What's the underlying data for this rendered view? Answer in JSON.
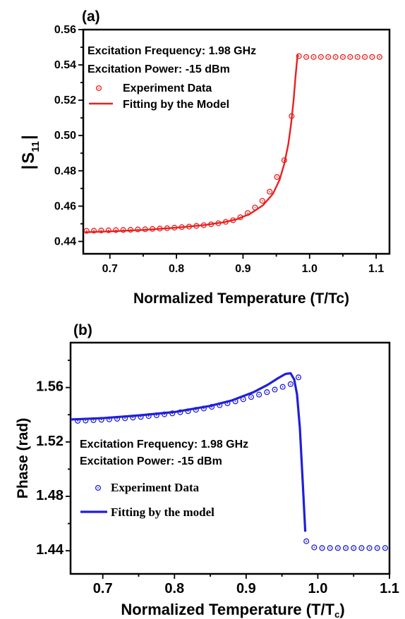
{
  "chart_data": [
    {
      "type": "line",
      "panel_label": "(a)",
      "xlabel": "Normalized Temperature (T/Tc)",
      "ylabel_main": "S",
      "ylabel_sub": "11",
      "xlim": [
        0.66,
        1.12
      ],
      "ylim": [
        0.433,
        0.56
      ],
      "xticks": [
        0.7,
        0.8,
        0.9,
        1.0,
        1.1
      ],
      "xtick_labels": [
        "0.7",
        "0.8",
        "0.9",
        "1.0",
        "1.1"
      ],
      "yticks": [
        0.44,
        0.46,
        0.48,
        0.5,
        0.52,
        0.54,
        0.56
      ],
      "ytick_labels": [
        "0.44",
        "0.46",
        "0.48",
        "0.50",
        "0.52",
        "0.54",
        "0.56"
      ],
      "annotations": [
        "Excitation Frequency: 1.98 GHz",
        "Excitation Power: -15 dBm"
      ],
      "legend": [
        "Experiment Data",
        "Fitting by the Model"
      ],
      "color": "#e8201f",
      "series": [
        {
          "name": "Experiment Data",
          "kind": "markers",
          "x": [
            0.665,
            0.676,
            0.687,
            0.698,
            0.709,
            0.72,
            0.731,
            0.742,
            0.753,
            0.764,
            0.775,
            0.786,
            0.797,
            0.808,
            0.819,
            0.83,
            0.841,
            0.852,
            0.863,
            0.874,
            0.885,
            0.896,
            0.907,
            0.918,
            0.929,
            0.94,
            0.951,
            0.962,
            0.973,
            0.984,
            0.995,
            1.006,
            1.017,
            1.028,
            1.039,
            1.05,
            1.061,
            1.072,
            1.083,
            1.094,
            1.105
          ],
          "y": [
            0.446,
            0.4461,
            0.4462,
            0.4463,
            0.4464,
            0.4465,
            0.4466,
            0.4468,
            0.4469,
            0.4471,
            0.4473,
            0.4475,
            0.4478,
            0.4481,
            0.4484,
            0.4488,
            0.4492,
            0.4497,
            0.4503,
            0.4511,
            0.452,
            0.4537,
            0.4561,
            0.4592,
            0.463,
            0.4682,
            0.4765,
            0.486,
            0.511,
            0.545,
            0.5445,
            0.5445,
            0.5445,
            0.5445,
            0.5445,
            0.5445,
            0.5445,
            0.5445,
            0.5445,
            0.5445,
            0.5445
          ]
        },
        {
          "name": "Fitting by the Model",
          "kind": "line",
          "x": [
            0.662,
            0.7,
            0.75,
            0.8,
            0.84,
            0.87,
            0.89,
            0.91,
            0.93,
            0.945,
            0.955,
            0.962,
            0.968,
            0.972,
            0.976,
            0.979,
            0.981,
            0.982
          ],
          "y": [
            0.4452,
            0.4457,
            0.4465,
            0.4478,
            0.4492,
            0.4508,
            0.4525,
            0.4555,
            0.4605,
            0.467,
            0.475,
            0.484,
            0.495,
            0.506,
            0.52,
            0.534,
            0.542,
            0.546
          ]
        }
      ]
    },
    {
      "type": "line",
      "panel_label": "(b)",
      "xlabel_main": "Normalized Temperature (T/T",
      "xlabel_sub": "c",
      "xlabel_end": ")",
      "ylabel": "Phase (rad)",
      "xlim": [
        0.655,
        1.1
      ],
      "ylim": [
        1.423,
        1.593
      ],
      "xticks": [
        0.7,
        0.8,
        0.9,
        1.0,
        1.1
      ],
      "xtick_labels": [
        "0.7",
        "0.8",
        "0.9",
        "1.0",
        "1.1"
      ],
      "yticks": [
        1.44,
        1.48,
        1.52,
        1.56
      ],
      "ytick_labels": [
        "1.44",
        "1.48",
        "1.52",
        "1.56"
      ],
      "annotations": [
        "Excitation Frequency: 1.98 GHz",
        "Excitation Power: -15 dBm"
      ],
      "legend": [
        "Experiment Data",
        "Fitting by the model"
      ],
      "color": "#1f1fd9",
      "series": [
        {
          "name": "Experiment Data",
          "kind": "markers",
          "x": [
            0.665,
            0.676,
            0.687,
            0.698,
            0.709,
            0.72,
            0.731,
            0.742,
            0.753,
            0.764,
            0.775,
            0.786,
            0.797,
            0.808,
            0.819,
            0.83,
            0.841,
            0.852,
            0.863,
            0.874,
            0.885,
            0.896,
            0.907,
            0.918,
            0.929,
            0.94,
            0.951,
            0.962,
            0.973,
            0.984,
            0.995,
            1.006,
            1.017,
            1.028,
            1.039,
            1.05,
            1.061,
            1.072,
            1.083,
            1.094
          ],
          "y": [
            1.5355,
            1.5357,
            1.536,
            1.5363,
            1.5366,
            1.537,
            1.5374,
            1.5379,
            1.5384,
            1.539,
            1.5396,
            1.5403,
            1.541,
            1.5418,
            1.5426,
            1.5436,
            1.5446,
            1.5458,
            1.547,
            1.5484,
            1.5498,
            1.5514,
            1.553,
            1.5548,
            1.5566,
            1.5585,
            1.5605,
            1.5625,
            1.5675,
            1.447,
            1.4425,
            1.442,
            1.442,
            1.442,
            1.442,
            1.442,
            1.442,
            1.442,
            1.442,
            1.442
          ]
        },
        {
          "name": "Fitting by the model",
          "kind": "line",
          "x": [
            0.655,
            0.7,
            0.75,
            0.8,
            0.85,
            0.88,
            0.91,
            0.93,
            0.945,
            0.955,
            0.962,
            0.967,
            0.971,
            0.975,
            0.979,
            0.9825
          ],
          "y": [
            1.5365,
            1.5375,
            1.5395,
            1.542,
            1.5465,
            1.5505,
            1.5565,
            1.562,
            1.567,
            1.57,
            1.5705,
            1.566,
            1.555,
            1.53,
            1.49,
            1.454
          ]
        }
      ]
    }
  ]
}
